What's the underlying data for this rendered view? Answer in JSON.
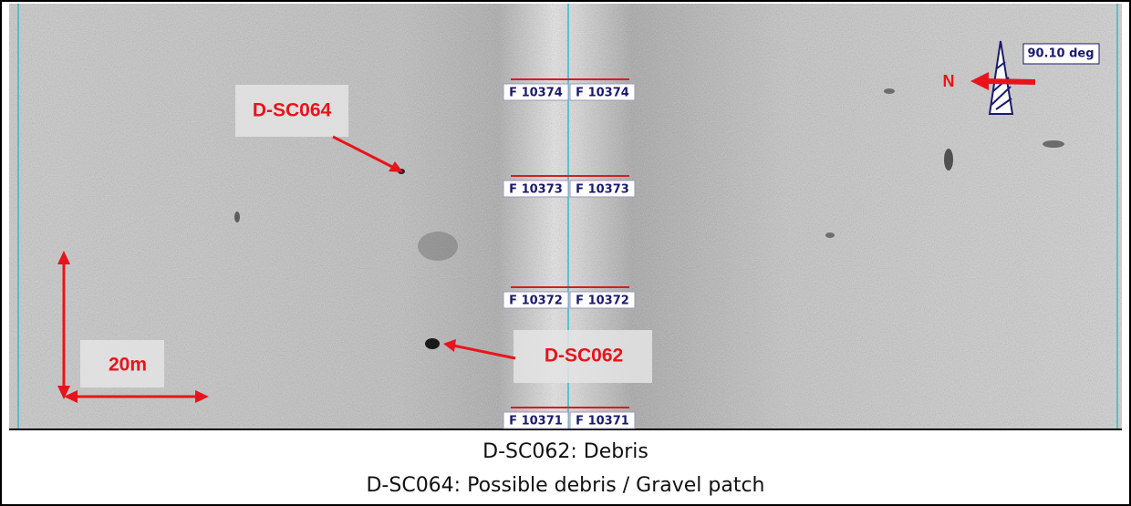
{
  "image": {
    "annotations": [
      "D-SC064",
      "D-SC062"
    ],
    "scale_label": "20m",
    "north_label": "N",
    "heading": "90.10 deg",
    "fix_labels": [
      [
        "F 10374",
        "F 10374"
      ],
      [
        "F 10373",
        "F 10373"
      ],
      [
        "F 10372",
        "F 10372"
      ],
      [
        "F 10371",
        "F 10371"
      ]
    ]
  },
  "caption": [
    "D-SC062: Debris",
    "D-SC064: Possible debris / Gravel patch"
  ]
}
